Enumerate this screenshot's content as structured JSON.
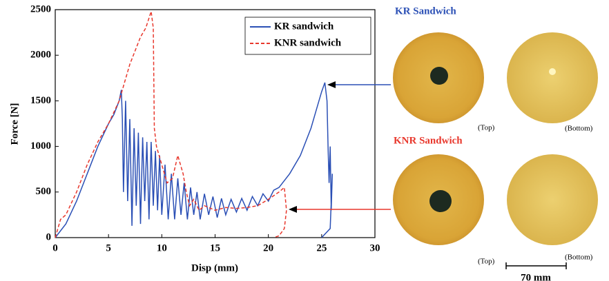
{
  "chart_data": {
    "type": "line",
    "xlabel": "Disp (mm)",
    "ylabel": "Force [N]",
    "xlim": [
      0,
      30
    ],
    "xticks": [
      0,
      5,
      10,
      15,
      20,
      25,
      30
    ],
    "ylim": [
      0,
      2500
    ],
    "yticks": [
      0,
      500,
      1000,
      1500,
      2000,
      2500
    ],
    "legend": "upper right",
    "series": [
      {
        "name": "KR sandwich",
        "color": "#2a4fb5",
        "dash": false,
        "x": [
          0,
          1,
          2,
          3,
          4,
          5,
          5.5,
          6,
          6.2,
          6.3,
          6.4,
          6.6,
          6.8,
          7,
          7.2,
          7.4,
          7.6,
          7.8,
          8,
          8.2,
          8.4,
          8.6,
          8.8,
          9,
          9.2,
          9.4,
          9.6,
          9.8,
          10,
          10.3,
          10.6,
          10.9,
          11.2,
          11.5,
          11.8,
          12.1,
          12.4,
          12.7,
          13,
          13.3,
          13.6,
          14,
          14.4,
          14.8,
          15.2,
          15.6,
          16,
          16.5,
          17,
          17.5,
          18,
          18.5,
          19,
          19.5,
          20,
          20.5,
          21,
          22,
          23,
          24,
          24.5,
          25,
          25.3,
          25.5,
          25.6,
          25.7,
          25.8,
          25.9,
          26,
          25.8,
          25
        ],
        "values": [
          0,
          150,
          400,
          700,
          1000,
          1250,
          1350,
          1500,
          1620,
          1300,
          500,
          1500,
          400,
          1300,
          130,
          1200,
          350,
          1150,
          150,
          1100,
          400,
          1050,
          200,
          1050,
          350,
          950,
          300,
          900,
          250,
          800,
          200,
          700,
          200,
          650,
          250,
          600,
          200,
          550,
          250,
          500,
          200,
          480,
          250,
          450,
          220,
          430,
          250,
          420,
          280,
          430,
          300,
          450,
          350,
          480,
          400,
          520,
          550,
          700,
          900,
          1200,
          1400,
          1600,
          1700,
          1500,
          1000,
          600,
          1000,
          300,
          700,
          100,
          0
        ]
      },
      {
        "name": "KNR sandwich",
        "color": "#e8372c",
        "dash": true,
        "x": [
          0,
          0.5,
          1,
          2,
          3,
          4,
          5,
          6,
          7,
          8,
          8.5,
          9,
          9.2,
          9.3,
          9.5,
          10,
          10.5,
          11,
          11.5,
          12,
          12.3,
          12.6,
          13,
          13.5,
          14,
          15,
          16,
          17,
          18,
          19,
          20,
          21,
          21.5,
          21.7,
          21.5,
          21,
          20.5
        ],
        "values": [
          0,
          200,
          250,
          500,
          800,
          1050,
          1250,
          1500,
          1900,
          2200,
          2300,
          2480,
          2300,
          1200,
          1000,
          800,
          600,
          650,
          900,
          700,
          500,
          350,
          420,
          300,
          350,
          300,
          330,
          320,
          330,
          350,
          420,
          500,
          550,
          300,
          100,
          20,
          0
        ]
      }
    ],
    "annotations": [
      "KR Sandwich",
      "KNR Sandwich",
      "(Top)",
      "(Bottom)",
      "(Top)",
      "(Bottom)",
      "70 mm"
    ]
  }
}
